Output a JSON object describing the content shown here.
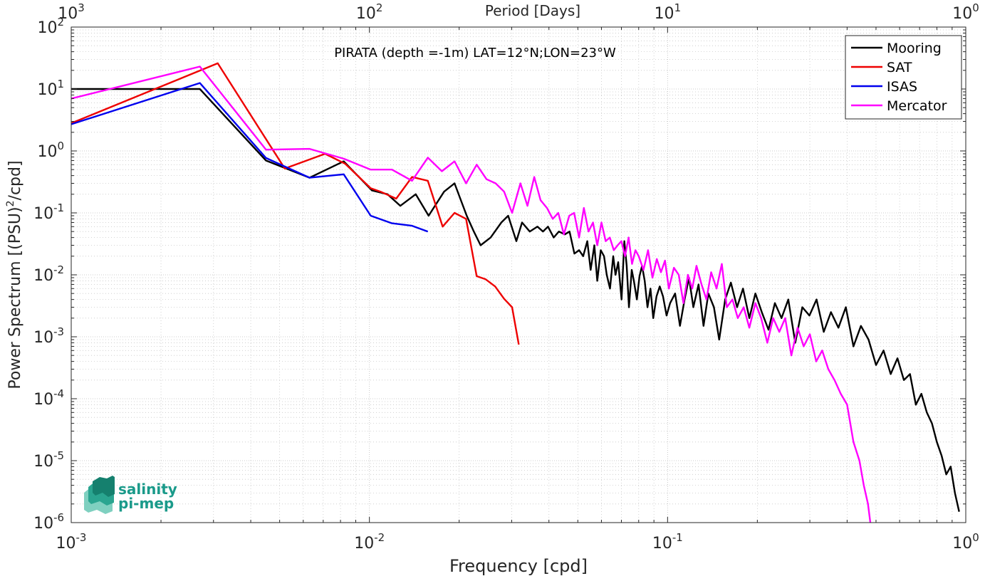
{
  "chart_data": {
    "type": "line",
    "title": "PIRATA (depth =-1m) LAT=12°N;LON=23°W",
    "xlabel": "Frequency [cpd]",
    "ylabel_main": "Power Spectrum [(PSU)",
    "ylabel_sup": "2",
    "ylabel_tail": "/cpd]",
    "top_xlabel": "Period [Days]",
    "xscale": "log",
    "yscale": "log",
    "xlim": [
      0.001,
      1
    ],
    "ylim": [
      1e-06,
      100
    ],
    "grid": true,
    "legend_position": "top-right",
    "x_ticks": [
      {
        "value": 0.001,
        "base": "10",
        "exp": "-3"
      },
      {
        "value": 0.01,
        "base": "10",
        "exp": "-2"
      },
      {
        "value": 0.1,
        "base": "10",
        "exp": "-1"
      },
      {
        "value": 1,
        "base": "10",
        "exp": "0"
      }
    ],
    "top_ticks": [
      {
        "value": 0.001,
        "base": "10",
        "exp": "3"
      },
      {
        "value": 0.01,
        "base": "10",
        "exp": "2"
      },
      {
        "value": 0.1,
        "base": "10",
        "exp": "1"
      },
      {
        "value": 1,
        "base": "10",
        "exp": "0"
      }
    ],
    "y_ticks": [
      {
        "value": 100,
        "base": "10",
        "exp": "2"
      },
      {
        "value": 10,
        "base": "10",
        "exp": "1"
      },
      {
        "value": 1,
        "base": "10",
        "exp": "0"
      },
      {
        "value": 0.1,
        "base": "10",
        "exp": "-1"
      },
      {
        "value": 0.01,
        "base": "10",
        "exp": "-2"
      },
      {
        "value": 0.001,
        "base": "10",
        "exp": "-3"
      },
      {
        "value": 0.0001,
        "base": "10",
        "exp": "-4"
      },
      {
        "value": 1e-05,
        "base": "10",
        "exp": "-5"
      },
      {
        "value": 1e-06,
        "base": "10",
        "exp": "-6"
      }
    ],
    "series": [
      {
        "name": "Mooring",
        "color": "#000000",
        "x": [
          0.001,
          0.0027,
          0.0045,
          0.0063,
          0.0082,
          0.0102,
          0.0115,
          0.0127,
          0.0143,
          0.0158,
          0.0178,
          0.0193,
          0.0212,
          0.0224,
          0.0236,
          0.0255,
          0.0277,
          0.0292,
          0.0311,
          0.0325,
          0.0345,
          0.0366,
          0.0382,
          0.0397,
          0.0415,
          0.0432,
          0.0452,
          0.0469,
          0.0487,
          0.0505,
          0.0521,
          0.0538,
          0.0552,
          0.0568,
          0.0581,
          0.0597,
          0.0612,
          0.0625,
          0.0641,
          0.0657,
          0.0669,
          0.0683,
          0.0701,
          0.0716,
          0.0729,
          0.0742,
          0.0758,
          0.0771,
          0.0789,
          0.0805,
          0.0821,
          0.0838,
          0.0856,
          0.0876,
          0.0895,
          0.0918,
          0.0941,
          0.0965,
          0.0992,
          0.102,
          0.106,
          0.11,
          0.114,
          0.118,
          0.122,
          0.127,
          0.132,
          0.137,
          0.143,
          0.149,
          0.156,
          0.163,
          0.171,
          0.179,
          0.188,
          0.197,
          0.207,
          0.218,
          0.229,
          0.241,
          0.254,
          0.268,
          0.283,
          0.299,
          0.316,
          0.334,
          0.353,
          0.374,
          0.396,
          0.42,
          0.445,
          0.472,
          0.5,
          0.53,
          0.56,
          0.59,
          0.62,
          0.65,
          0.68,
          0.71,
          0.74,
          0.77,
          0.8,
          0.83,
          0.86,
          0.89,
          0.92,
          0.95
        ],
        "y": [
          10,
          10,
          0.7,
          0.37,
          0.68,
          0.23,
          0.2,
          0.13,
          0.2,
          0.09,
          0.22,
          0.3,
          0.09,
          0.05,
          0.03,
          0.04,
          0.07,
          0.09,
          0.035,
          0.07,
          0.05,
          0.06,
          0.05,
          0.06,
          0.04,
          0.05,
          0.045,
          0.05,
          0.022,
          0.025,
          0.02,
          0.035,
          0.012,
          0.03,
          0.008,
          0.025,
          0.02,
          0.01,
          0.006,
          0.02,
          0.01,
          0.016,
          0.004,
          0.035,
          0.014,
          0.003,
          0.012,
          0.008,
          0.004,
          0.0095,
          0.014,
          0.008,
          0.003,
          0.006,
          0.002,
          0.0045,
          0.0065,
          0.0045,
          0.0022,
          0.0035,
          0.005,
          0.0015,
          0.004,
          0.009,
          0.003,
          0.007,
          0.0015,
          0.005,
          0.003,
          0.0009,
          0.004,
          0.0075,
          0.003,
          0.006,
          0.002,
          0.005,
          0.0025,
          0.0013,
          0.0035,
          0.002,
          0.004,
          0.0008,
          0.003,
          0.0022,
          0.004,
          0.0012,
          0.0025,
          0.0014,
          0.003,
          0.0007,
          0.0015,
          0.0009,
          0.00035,
          0.0006,
          0.00025,
          0.00045,
          0.0002,
          0.00025,
          8e-05,
          0.00012,
          6e-05,
          4e-05,
          2e-05,
          1.2e-05,
          6e-06,
          8e-06,
          3e-06,
          1.5e-06
        ]
      },
      {
        "name": "SAT",
        "color": "#ee0000",
        "x": [
          0.001,
          0.0031,
          0.0052,
          0.0071,
          0.0083,
          0.0101,
          0.0109,
          0.0123,
          0.0139,
          0.0157,
          0.0176,
          0.0193,
          0.0211,
          0.0229,
          0.0245,
          0.0264,
          0.0283,
          0.0301,
          0.0317
        ],
        "y": [
          2.8,
          26,
          0.52,
          0.9,
          0.62,
          0.25,
          0.22,
          0.17,
          0.38,
          0.33,
          0.06,
          0.1,
          0.08,
          0.0095,
          0.0085,
          0.0065,
          0.0041,
          0.003,
          0.00075
        ]
      },
      {
        "name": "ISAS",
        "color": "#0000ee",
        "x": [
          0.001,
          0.0027,
          0.0045,
          0.0063,
          0.0082,
          0.0101,
          0.0119,
          0.0139,
          0.0157
        ],
        "y": [
          2.7,
          12.5,
          0.77,
          0.37,
          0.42,
          0.09,
          0.068,
          0.062,
          0.05
        ]
      },
      {
        "name": "Mercator",
        "color": "#ff00ff",
        "x": [
          0.001,
          0.0027,
          0.0045,
          0.0063,
          0.0082,
          0.0101,
          0.0119,
          0.0139,
          0.0157,
          0.0175,
          0.0193,
          0.0211,
          0.0229,
          0.0247,
          0.0265,
          0.0283,
          0.0301,
          0.0321,
          0.0339,
          0.0357,
          0.0375,
          0.0394,
          0.0412,
          0.043,
          0.0449,
          0.0468,
          0.0486,
          0.0505,
          0.0524,
          0.0543,
          0.0562,
          0.0581,
          0.06,
          0.062,
          0.064,
          0.066,
          0.068,
          0.07,
          0.072,
          0.074,
          0.076,
          0.078,
          0.08,
          0.083,
          0.086,
          0.089,
          0.092,
          0.095,
          0.098,
          0.101,
          0.105,
          0.109,
          0.113,
          0.117,
          0.121,
          0.125,
          0.13,
          0.135,
          0.14,
          0.146,
          0.152,
          0.158,
          0.165,
          0.172,
          0.18,
          0.188,
          0.197,
          0.206,
          0.216,
          0.226,
          0.237,
          0.248,
          0.26,
          0.273,
          0.286,
          0.3,
          0.315,
          0.33,
          0.346,
          0.363,
          0.381,
          0.4,
          0.42,
          0.44,
          0.455,
          0.47,
          0.48
        ],
        "y": [
          7,
          23,
          1.05,
          1.08,
          0.75,
          0.5,
          0.5,
          0.33,
          0.78,
          0.47,
          0.68,
          0.3,
          0.6,
          0.35,
          0.3,
          0.22,
          0.1,
          0.3,
          0.13,
          0.38,
          0.16,
          0.12,
          0.08,
          0.1,
          0.045,
          0.09,
          0.1,
          0.04,
          0.12,
          0.05,
          0.07,
          0.03,
          0.07,
          0.035,
          0.04,
          0.025,
          0.03,
          0.035,
          0.02,
          0.04,
          0.015,
          0.025,
          0.02,
          0.012,
          0.025,
          0.009,
          0.018,
          0.011,
          0.017,
          0.006,
          0.013,
          0.01,
          0.0035,
          0.01,
          0.006,
          0.014,
          0.007,
          0.004,
          0.011,
          0.006,
          0.015,
          0.003,
          0.004,
          0.002,
          0.003,
          0.0014,
          0.0035,
          0.002,
          0.0008,
          0.002,
          0.0012,
          0.002,
          0.0005,
          0.0014,
          0.0007,
          0.0011,
          0.0004,
          0.0006,
          0.0003,
          0.0002,
          0.00012,
          8e-05,
          2e-05,
          1e-05,
          4e-06,
          2e-06,
          9e-07
        ]
      }
    ]
  },
  "logo": {
    "line1": "salinity",
    "line2": "pi-mep",
    "color": "#1a9a8a"
  }
}
